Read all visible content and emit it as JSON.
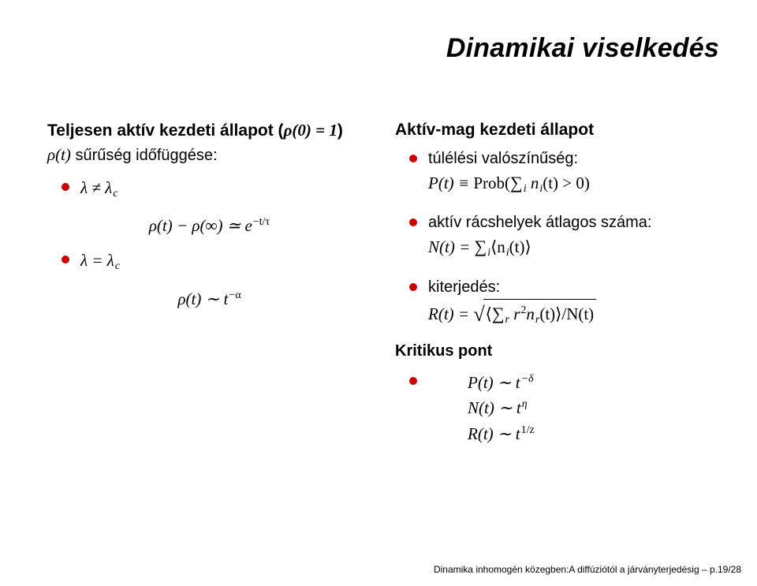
{
  "title": "Dinamikai viselkedés",
  "left": {
    "line1_prefix": "Teljesen aktív kezdeti állapot (",
    "line1_math": "ρ(0) = 1",
    "line1_suffix": ")",
    "line2_math_prefix": "ρ(t)",
    "line2_text": " sűrűség időfüggése:",
    "bullet1_math": "λ ≠ λ",
    "bullet1_sub": "c",
    "eq1_lhs": "ρ(t) − ρ(∞) ≃ e",
    "eq1_sup": "−t/τ",
    "bullet2_math": "λ = λ",
    "bullet2_sub": "c",
    "eq2_lhs": "ρ(t) ∼ t",
    "eq2_sup": "−α"
  },
  "right": {
    "heading": "Aktív-mag kezdeti állapot",
    "b1_text": "túlélési valószínűség:",
    "b1_math_a": "P(t) ≡ ",
    "b1_math_prob": "Prob",
    "b1_math_b": "(",
    "b1_sigma": "∑",
    "b1_sub": "i",
    "b1_math_c": " n",
    "b1_sub2": "i",
    "b1_math_d": "(t) > 0)",
    "b2_text": "aktív rácshelyek átlagos száma:",
    "b2_math_a": "N(t) = ",
    "b2_sigma": "∑",
    "b2_sub": "i",
    "b2_math_b": "⟨n",
    "b2_sub2": "i",
    "b2_math_c": "(t)⟩",
    "b3_text": "kiterjedés:",
    "b3_math_a": "R(t) = ",
    "b3_rad_a": "⟨",
    "b3_sigma": "∑",
    "b3_sub": "r",
    "b3_rad_b": " r",
    "b3_sup": "2",
    "b3_rad_c": "n",
    "b3_sub2": "r",
    "b3_rad_d": "(t)⟩/N(t)",
    "crit_heading": "Kritikus pont",
    "crit_l1_a": "P(t) ∼ t",
    "crit_l1_sup": "−δ",
    "crit_l2_a": "N(t) ∼ t",
    "crit_l2_sup": "η",
    "crit_l3_a": "R(t) ∼ t",
    "crit_l3_sup": "1/z"
  },
  "footer": "Dinamika inhomogén közegben:A diffúziótól a járványterjedésig – p.19/28",
  "colors": {
    "bullet": "#cc0000",
    "text": "#000000",
    "bg": "#ffffff"
  }
}
